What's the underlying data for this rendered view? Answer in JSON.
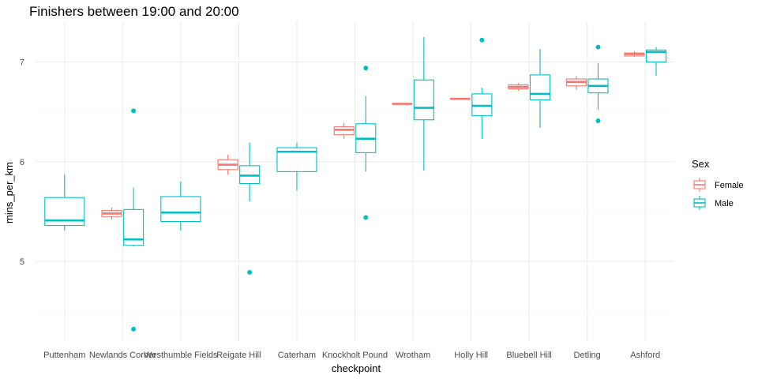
{
  "chart_data": {
    "type": "boxplot",
    "title": "Finishers between 19:00 and 20:00",
    "xlabel": "checkpoint",
    "ylabel": "mins_per_km",
    "ylim": [
      4.2,
      7.4
    ],
    "yticks": [
      5,
      6,
      7
    ],
    "grid": true,
    "legend": {
      "title": "Sex",
      "position": "right"
    },
    "categories": [
      "Puttenham",
      "Newlands Corner",
      "Westhumble Fields",
      "Reigate Hill",
      "Caterham",
      "Knockholt Pound",
      "Wrotham",
      "Holly Hill",
      "Bluebell Hill",
      "Detling",
      "Ashford"
    ],
    "series": [
      {
        "name": "Female",
        "color": "#F8766D",
        "boxes": [
          {
            "category": "Newlands Corner",
            "min": 5.42,
            "q1": 5.45,
            "median": 5.48,
            "q3": 5.51,
            "max": 5.54,
            "outliers": []
          },
          {
            "category": "Reigate Hill",
            "min": 5.87,
            "q1": 5.92,
            "median": 5.97,
            "q3": 6.02,
            "max": 6.07,
            "outliers": []
          },
          {
            "category": "Knockholt Pound",
            "min": 6.23,
            "q1": 6.27,
            "median": 6.32,
            "q3": 6.35,
            "max": 6.39,
            "outliers": []
          },
          {
            "category": "Wrotham",
            "min": 6.58,
            "q1": 6.58,
            "median": 6.58,
            "q3": 6.58,
            "max": 6.58,
            "outliers": []
          },
          {
            "category": "Holly Hill",
            "min": 6.63,
            "q1": 6.63,
            "median": 6.63,
            "q3": 6.63,
            "max": 6.63,
            "outliers": []
          },
          {
            "category": "Bluebell Hill",
            "min": 6.71,
            "q1": 6.73,
            "median": 6.75,
            "q3": 6.77,
            "max": 6.79,
            "outliers": []
          },
          {
            "category": "Detling",
            "min": 6.72,
            "q1": 6.76,
            "median": 6.8,
            "q3": 6.83,
            "max": 6.86,
            "outliers": []
          },
          {
            "category": "Ashford",
            "min": 7.05,
            "q1": 7.06,
            "median": 7.08,
            "q3": 7.09,
            "max": 7.11,
            "outliers": []
          }
        ]
      },
      {
        "name": "Male",
        "color": "#00BFC4",
        "boxes": [
          {
            "category": "Puttenham",
            "min": 5.31,
            "q1": 5.36,
            "median": 5.41,
            "q3": 5.64,
            "max": 5.87,
            "outliers": []
          },
          {
            "category": "Newlands Corner",
            "min": 5.15,
            "q1": 5.16,
            "median": 5.22,
            "q3": 5.52,
            "max": 5.74,
            "outliers": [
              6.51,
              4.32
            ]
          },
          {
            "category": "Westhumble Fields",
            "min": 5.31,
            "q1": 5.4,
            "median": 5.49,
            "q3": 5.65,
            "max": 5.8,
            "outliers": []
          },
          {
            "category": "Reigate Hill",
            "min": 5.6,
            "q1": 5.78,
            "median": 5.86,
            "q3": 5.96,
            "max": 6.19,
            "outliers": [
              4.89
            ]
          },
          {
            "category": "Caterham",
            "min": 5.71,
            "q1": 5.9,
            "median": 6.1,
            "q3": 6.14,
            "max": 6.19,
            "outliers": []
          },
          {
            "category": "Knockholt Pound",
            "min": 5.9,
            "q1": 6.09,
            "median": 6.23,
            "q3": 6.38,
            "max": 6.66,
            "outliers": [
              6.94,
              5.44
            ]
          },
          {
            "category": "Wrotham",
            "min": 5.91,
            "q1": 6.42,
            "median": 6.54,
            "q3": 6.82,
            "max": 7.25,
            "outliers": []
          },
          {
            "category": "Holly Hill",
            "min": 6.23,
            "q1": 6.46,
            "median": 6.56,
            "q3": 6.68,
            "max": 6.74,
            "outliers": [
              7.22
            ]
          },
          {
            "category": "Bluebell Hill",
            "min": 6.34,
            "q1": 6.62,
            "median": 6.68,
            "q3": 6.87,
            "max": 7.13,
            "outliers": []
          },
          {
            "category": "Detling",
            "min": 6.52,
            "q1": 6.69,
            "median": 6.76,
            "q3": 6.83,
            "max": 6.99,
            "outliers": [
              7.15,
              6.41
            ]
          },
          {
            "category": "Ashford",
            "min": 6.86,
            "q1": 7.0,
            "median": 7.1,
            "q3": 7.12,
            "max": 7.15,
            "outliers": []
          }
        ]
      }
    ]
  }
}
